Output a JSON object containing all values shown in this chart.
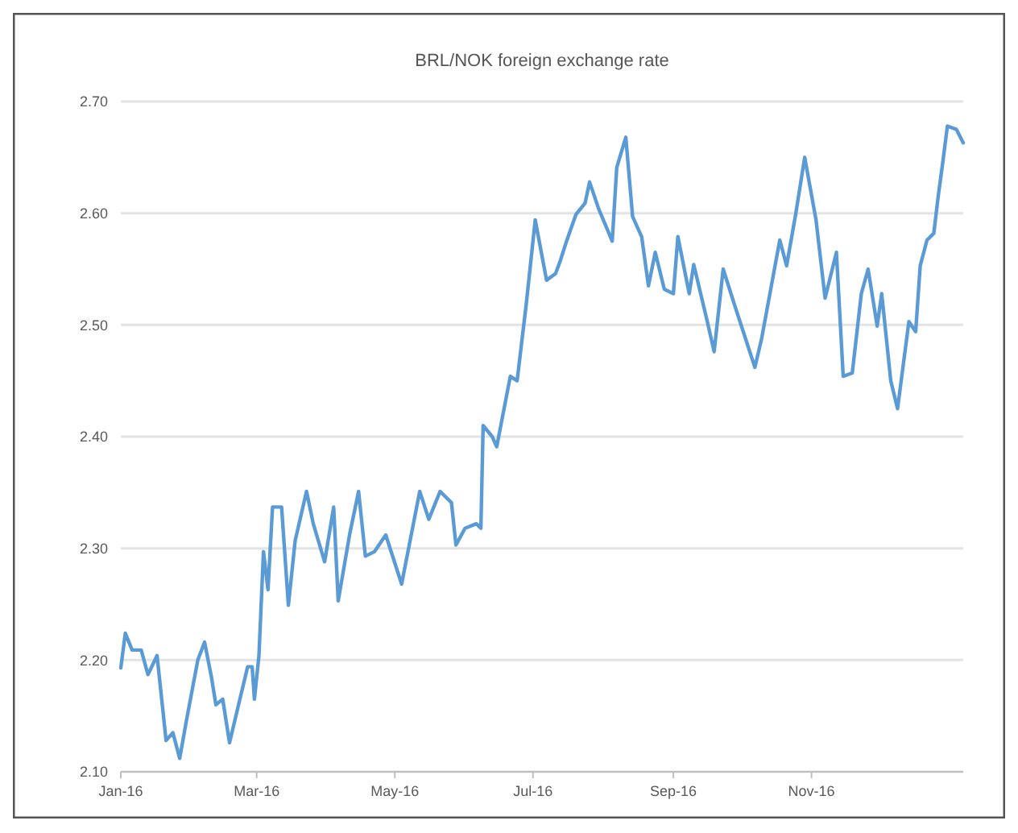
{
  "chart_data": {
    "type": "line",
    "title": "BRL/NOK foreign exchange rate",
    "series": [
      {
        "color": "#5b9bd5",
        "x": [
          "2016-01-01",
          "2016-01-03",
          "2016-01-06",
          "2016-01-10",
          "2016-01-13",
          "2016-01-17",
          "2016-01-21",
          "2016-01-24",
          "2016-01-27",
          "2016-01-30",
          "2016-02-04",
          "2016-02-07",
          "2016-02-10",
          "2016-02-12",
          "2016-02-15",
          "2016-02-18",
          "2016-02-22",
          "2016-02-26",
          "2016-02-28",
          "2016-02-29",
          "2016-03-02",
          "2016-03-04",
          "2016-03-06",
          "2016-03-08",
          "2016-03-12",
          "2016-03-15",
          "2016-03-18",
          "2016-03-23",
          "2016-03-26",
          "2016-03-31",
          "2016-04-04",
          "2016-04-06",
          "2016-04-11",
          "2016-04-15",
          "2016-04-18",
          "2016-04-22",
          "2016-04-27",
          "2016-05-04",
          "2016-05-12",
          "2016-05-16",
          "2016-05-21",
          "2016-05-26",
          "2016-05-28",
          "2016-06-01",
          "2016-06-06",
          "2016-06-08",
          "2016-06-09",
          "2016-06-13",
          "2016-06-15",
          "2016-06-21",
          "2016-06-24",
          "2016-06-28",
          "2016-07-02",
          "2016-07-07",
          "2016-07-11",
          "2016-07-13",
          "2016-07-16",
          "2016-07-20",
          "2016-07-24",
          "2016-07-26",
          "2016-07-30",
          "2016-08-05",
          "2016-08-07",
          "2016-08-11",
          "2016-08-14",
          "2016-08-18",
          "2016-08-21",
          "2016-08-24",
          "2016-08-28",
          "2016-09-01",
          "2016-09-03",
          "2016-09-08",
          "2016-09-10",
          "2016-09-16",
          "2016-09-19",
          "2016-09-23",
          "2016-09-28",
          "2016-10-07",
          "2016-10-10",
          "2016-10-18",
          "2016-10-21",
          "2016-10-25",
          "2016-10-29",
          "2016-11-03",
          "2016-11-07",
          "2016-11-12",
          "2016-11-15",
          "2016-11-19",
          "2016-11-23",
          "2016-11-26",
          "2016-11-30",
          "2016-12-02",
          "2016-12-06",
          "2016-12-09",
          "2016-12-14",
          "2016-12-17",
          "2016-12-19",
          "2016-12-22",
          "2016-12-25",
          "2016-12-27",
          "2016-12-29",
          "2016-12-31",
          "2017-01-04",
          "2017-01-07"
        ],
        "values": [
          2.193,
          2.224,
          2.209,
          2.209,
          2.187,
          2.204,
          2.128,
          2.135,
          2.112,
          2.146,
          2.2,
          2.216,
          2.185,
          2.16,
          2.165,
          2.126,
          2.16,
          2.194,
          2.194,
          2.165,
          2.204,
          2.297,
          2.263,
          2.337,
          2.337,
          2.249,
          2.307,
          2.351,
          2.322,
          2.288,
          2.337,
          2.253,
          2.312,
          2.351,
          2.293,
          2.297,
          2.312,
          2.268,
          2.351,
          2.326,
          2.351,
          2.341,
          2.303,
          2.318,
          2.322,
          2.318,
          2.41,
          2.4,
          2.391,
          2.454,
          2.45,
          2.518,
          2.594,
          2.54,
          2.546,
          2.557,
          2.576,
          2.599,
          2.609,
          2.628,
          2.604,
          2.575,
          2.641,
          2.668,
          2.597,
          2.579,
          2.535,
          2.565,
          2.532,
          2.528,
          2.579,
          2.528,
          2.554,
          2.503,
          2.476,
          2.55,
          2.518,
          2.462,
          2.488,
          2.576,
          2.553,
          2.599,
          2.65,
          2.594,
          2.524,
          2.565,
          2.454,
          2.457,
          2.528,
          2.55,
          2.499,
          2.528,
          2.45,
          2.425,
          2.503,
          2.494,
          2.553,
          2.576,
          2.582,
          2.616,
          2.646,
          2.678,
          2.675,
          2.663
        ]
      }
    ],
    "xlim": [
      "2016-01-01",
      "2017-01-07"
    ],
    "xticks": [
      {
        "value": "2016-01-01",
        "label": "Jan-16"
      },
      {
        "value": "2016-03-01",
        "label": "Mar-16"
      },
      {
        "value": "2016-05-01",
        "label": "May-16"
      },
      {
        "value": "2016-07-01",
        "label": "Jul-16"
      },
      {
        "value": "2016-09-01",
        "label": "Sep-16"
      },
      {
        "value": "2016-11-01",
        "label": "Nov-16"
      }
    ],
    "ylim": [
      2.1,
      2.7
    ],
    "yticks": [
      {
        "value": 2.1,
        "label": "2.10"
      },
      {
        "value": 2.2,
        "label": "2.20"
      },
      {
        "value": 2.3,
        "label": "2.30"
      },
      {
        "value": 2.4,
        "label": "2.40"
      },
      {
        "value": 2.5,
        "label": "2.50"
      },
      {
        "value": 2.6,
        "label": "2.60"
      },
      {
        "value": 2.7,
        "label": "2.70"
      }
    ],
    "grid": "y",
    "marker": "none",
    "line_style": "solid"
  }
}
